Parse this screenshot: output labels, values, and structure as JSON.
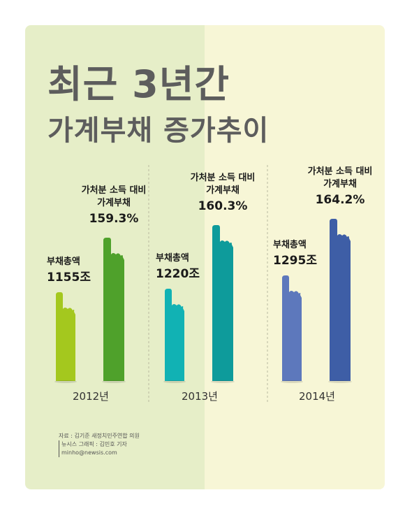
{
  "title_line1": "최근 3년간",
  "title_line2": "가계부채 증가추이",
  "chart_data": {
    "type": "bar",
    "title": "최근 3년간 가계부채 증가추이",
    "categories": [
      "2012년",
      "2013년",
      "2014년"
    ],
    "series": [
      {
        "name": "부채총액",
        "values": [
          1155,
          1220,
          1295
        ],
        "unit": "조",
        "colors": [
          "#a4c81e",
          "#11b2b4",
          "#5d78bc"
        ]
      },
      {
        "name": "가처분 소득 대비 가계부채",
        "values": [
          159.3,
          160.3,
          164.2
        ],
        "unit": "%",
        "colors": [
          "#4fa12b",
          "#0e9b9b",
          "#3e5ea6"
        ]
      }
    ],
    "value_labels": {
      "debt": [
        "1155조",
        "1220조",
        "1295조"
      ],
      "ratio": [
        "159.3%",
        "160.3%",
        "164.2%"
      ]
    },
    "series_labels": {
      "debt": "부채총액",
      "ratio_line1": "가처분 소득 대비",
      "ratio_line2": "가계부채"
    }
  },
  "source": {
    "line1": "자료 : 김기준 새정치민주연합 의원",
    "line2": "뉴시스 그래픽 : 김민호 기자",
    "line3": "minho@newsis.com"
  }
}
